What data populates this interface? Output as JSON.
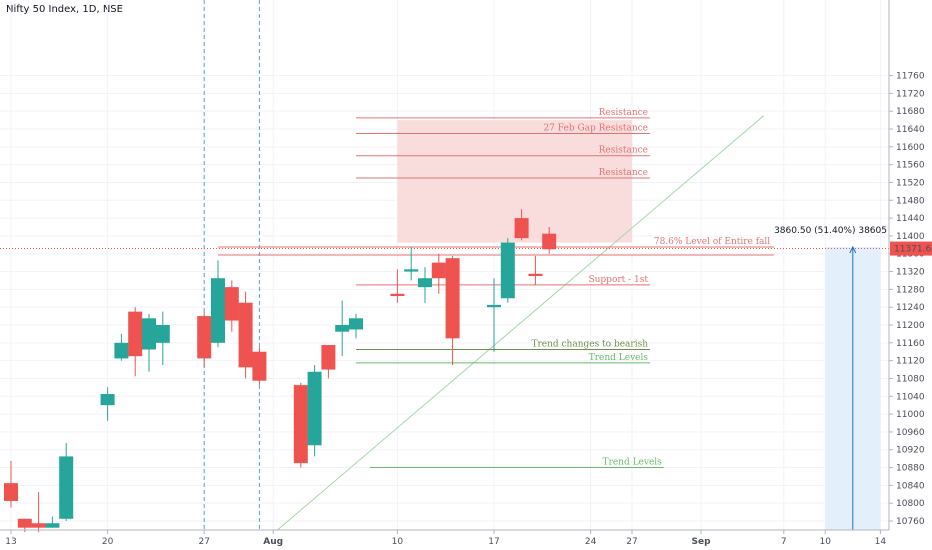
{
  "title": "Nifty 50 Index, 1D, NSE",
  "colors": {
    "up": "#26a69a",
    "down": "#ef5350",
    "resistance": "#e57373",
    "trend": "#66bb6a",
    "zone": "#f8d7d7",
    "measure": "#e3f0fc"
  },
  "chart_data": {
    "type": "candlestick",
    "title": "Nifty 50 Index, 1D, NSE",
    "y_ticks": [
      10760,
      10800,
      10840,
      10880,
      10920,
      10960,
      11000,
      11040,
      11080,
      11120,
      11160,
      11200,
      11240,
      11280,
      11320,
      11360,
      11400,
      11440,
      11480,
      11520,
      11560,
      11600,
      11640,
      11680,
      11720,
      11760
    ],
    "ylim": [
      10735,
      11790
    ],
    "x_ticks": [
      {
        "label": "13",
        "date": "2020-07-13"
      },
      {
        "label": "20",
        "date": "2020-07-20"
      },
      {
        "label": "27",
        "date": "2020-07-27"
      },
      {
        "label": "Aug",
        "date": "2020-08-01"
      },
      {
        "label": "10",
        "date": "2020-08-10"
      },
      {
        "label": "17",
        "date": "2020-08-17"
      },
      {
        "label": "24",
        "date": "2020-08-24"
      },
      {
        "label": "27",
        "date": "2020-08-27"
      },
      {
        "label": "Sep",
        "date": "2020-09-01"
      },
      {
        "label": "7",
        "date": "2020-09-07"
      },
      {
        "label": "10",
        "date": "2020-09-10"
      },
      {
        "label": "14",
        "date": "2020-09-14"
      }
    ],
    "candles": [
      {
        "date": "2020-07-13",
        "open": 10845,
        "high": 10895,
        "low": 10790,
        "close": 10805
      },
      {
        "date": "2020-07-14",
        "open": 10765,
        "high": 10765,
        "low": 10735,
        "close": 10745
      },
      {
        "date": "2020-07-15",
        "open": 10755,
        "high": 10825,
        "low": 10735,
        "close": 10745
      },
      {
        "date": "2020-07-16",
        "open": 10745,
        "high": 10770,
        "low": 10745,
        "close": 10755
      },
      {
        "date": "2020-07-17",
        "open": 10765,
        "high": 10935,
        "low": 10760,
        "close": 10905
      },
      {
        "date": "2020-07-20",
        "open": 11020,
        "high": 11060,
        "low": 10985,
        "close": 11045
      },
      {
        "date": "2020-07-21",
        "open": 11125,
        "high": 11180,
        "low": 11120,
        "close": 11160
      },
      {
        "date": "2020-07-22",
        "open": 11230,
        "high": 11240,
        "low": 11085,
        "close": 11130
      },
      {
        "date": "2020-07-23",
        "open": 11145,
        "high": 11225,
        "low": 11095,
        "close": 11215
      },
      {
        "date": "2020-07-24",
        "open": 11160,
        "high": 11230,
        "low": 11110,
        "close": 11200
      },
      {
        "date": "2020-07-27",
        "open": 11220,
        "high": 11230,
        "low": 11105,
        "close": 11125
      },
      {
        "date": "2020-07-28",
        "open": 11160,
        "high": 11345,
        "low": 11150,
        "close": 11305
      },
      {
        "date": "2020-07-29",
        "open": 11285,
        "high": 11300,
        "low": 11185,
        "close": 11210
      },
      {
        "date": "2020-07-30",
        "open": 11250,
        "high": 11275,
        "low": 11080,
        "close": 11105
      },
      {
        "date": "2020-07-31",
        "open": 11140,
        "high": 11150,
        "low": 11065,
        "close": 11075
      },
      {
        "date": "2020-08-03",
        "open": 11065,
        "high": 11070,
        "low": 10880,
        "close": 10890
      },
      {
        "date": "2020-08-04",
        "open": 10930,
        "high": 11110,
        "low": 10905,
        "close": 11095
      },
      {
        "date": "2020-08-05",
        "open": 11155,
        "high": 11155,
        "low": 11080,
        "close": 11100
      },
      {
        "date": "2020-08-06",
        "open": 11185,
        "high": 11255,
        "low": 11130,
        "close": 11200
      },
      {
        "date": "2020-08-07",
        "open": 11190,
        "high": 11225,
        "low": 11170,
        "close": 11215
      },
      {
        "date": "2020-08-10",
        "open": 11270,
        "high": 11325,
        "low": 11250,
        "close": 11265
      },
      {
        "date": "2020-08-11",
        "open": 11320,
        "high": 11375,
        "low": 11300,
        "close": 11325
      },
      {
        "date": "2020-08-12",
        "open": 11285,
        "high": 11330,
        "low": 11250,
        "close": 11305
      },
      {
        "date": "2020-08-13",
        "open": 11340,
        "high": 11360,
        "low": 11270,
        "close": 11305
      },
      {
        "date": "2020-08-14",
        "open": 11350,
        "high": 11355,
        "low": 11110,
        "close": 11170
      },
      {
        "date": "2020-08-17",
        "open": 11240,
        "high": 11305,
        "low": 11140,
        "close": 11245
      },
      {
        "date": "2020-08-18",
        "open": 11260,
        "high": 11395,
        "low": 11250,
        "close": 11385
      },
      {
        "date": "2020-08-19",
        "open": 11440,
        "high": 11460,
        "low": 11390,
        "close": 11395
      },
      {
        "date": "2020-08-20",
        "open": 11315,
        "high": 11355,
        "low": 11290,
        "close": 11310
      },
      {
        "date": "2020-08-21",
        "open": 11405,
        "high": 11420,
        "low": 11360,
        "close": 11370
      }
    ],
    "last_price_label": "11371.60",
    "measure_label": "3860.50 (51.40%) 38605",
    "annotations": [
      {
        "text": "Resistance",
        "price": 11665
      },
      {
        "text": "27 Feb Gap Resistance",
        "price": 11630
      },
      {
        "text": "Resistance",
        "price": 11580
      },
      {
        "text": "Resistance",
        "price": 11530
      },
      {
        "text": "78.6% Level of Entire fall",
        "price": 11375
      },
      {
        "text": "Support - 1st",
        "price": 11290
      },
      {
        "text": "Trend changes to bearish",
        "price": 11145
      },
      {
        "text": "Trend Levels",
        "price": 11115
      },
      {
        "text": "Trend Levels",
        "price": 10880
      }
    ]
  }
}
